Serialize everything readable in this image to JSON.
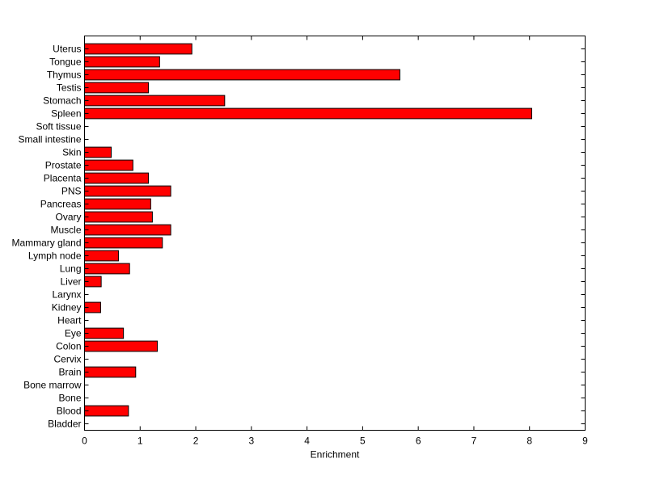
{
  "chart_data": {
    "type": "bar",
    "orientation": "horizontal",
    "title": "",
    "xlabel": "Enrichment",
    "ylabel": "",
    "xlim": [
      0,
      9
    ],
    "xticks": [
      0,
      1,
      2,
      3,
      4,
      5,
      6,
      7,
      8,
      9
    ],
    "grid": false,
    "bar_color": "#ff0000",
    "bar_edge_color": "#000000",
    "categories": [
      "Uterus",
      "Tongue",
      "Thymus",
      "Testis",
      "Stomach",
      "Spleen",
      "Soft tissue",
      "Small intestine",
      "Skin",
      "Prostate",
      "Placenta",
      "PNS",
      "Pancreas",
      "Ovary",
      "Muscle",
      "Mammary gland",
      "Lymph node",
      "Lung",
      "Liver",
      "Larynx",
      "Kidney",
      "Heart",
      "Eye",
      "Colon",
      "Cervix",
      "Brain",
      "Bone marrow",
      "Bone",
      "Blood",
      "Bladder"
    ],
    "values": [
      1.93,
      1.35,
      5.67,
      1.15,
      2.52,
      8.04,
      0,
      0,
      0.48,
      0.87,
      1.15,
      1.55,
      1.19,
      1.22,
      1.55,
      1.4,
      0.61,
      0.81,
      0.3,
      0,
      0.29,
      0,
      0.7,
      1.31,
      0,
      0.92,
      0,
      0,
      0.79,
      0
    ]
  }
}
